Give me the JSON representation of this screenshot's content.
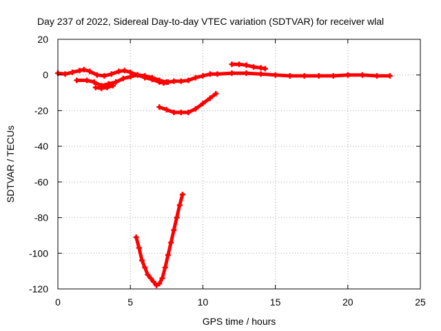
{
  "chart_data": {
    "type": "line",
    "title": "Day 237 of 2022, Sidereal Day-to-day VTEC variation (SDTVAR) for receiver wlal",
    "xlabel": "GPS time / hours",
    "ylabel": "SDTVAR / TECUs",
    "xlim": [
      0,
      25
    ],
    "ylim": [
      -120,
      20
    ],
    "xticks": [
      0,
      5,
      10,
      15,
      20,
      25
    ],
    "yticks": [
      -120,
      -100,
      -80,
      -60,
      -40,
      -20,
      0,
      20
    ],
    "grid": true,
    "legend": "none",
    "color": "#ff0000",
    "series": [
      {
        "x": [
          0.0,
          0.5,
          1.0,
          1.5,
          1.8,
          2.2,
          2.7,
          3.2,
          3.7,
          4.2,
          4.6,
          5.0,
          5.5,
          6.0,
          6.5,
          7.0,
          7.5
        ],
        "y": [
          1,
          0.5,
          1.5,
          2.5,
          3,
          2,
          0,
          -0.5,
          0.5,
          2,
          2.5,
          1.5,
          0,
          -0.5,
          -1.5,
          -3,
          -4
        ]
      },
      {
        "x": [
          1.3,
          2.0,
          2.5,
          3.0,
          3.5,
          4.0,
          4.5,
          5.0,
          5.5,
          6.0,
          6.5,
          7.0,
          7.3,
          7.6,
          8.0,
          8.5,
          9.0,
          9.5,
          10.0,
          10.5,
          11.0,
          12.0,
          13.0,
          14.0,
          15.0,
          16.0,
          17.0,
          18.0,
          19.0,
          20.0,
          21.0,
          22.0,
          22.9
        ],
        "y": [
          -3,
          -3,
          -4,
          -6,
          -5,
          -4,
          -2,
          -1,
          0,
          -1.5,
          -2.5,
          -4,
          -4.5,
          -4,
          -3.5,
          -3.5,
          -3,
          -1.5,
          -0.5,
          0.5,
          0.5,
          1,
          1,
          0.5,
          0,
          -0.5,
          -0.5,
          -0.5,
          -0.5,
          0,
          0,
          -0.5,
          -0.5
        ]
      },
      {
        "x": [
          2.6,
          3.0,
          3.4,
          3.8
        ],
        "y": [
          -7,
          -7.5,
          -7,
          -6
        ]
      },
      {
        "x": [
          12.0,
          12.5,
          13.0,
          13.5,
          14.0,
          14.3
        ],
        "y": [
          6,
          6,
          5.5,
          4.5,
          4,
          3.5
        ]
      },
      {
        "x": [
          7.0,
          7.5,
          8.0,
          8.5,
          9.0,
          9.5,
          10.0,
          10.5,
          10.9
        ],
        "y": [
          -18,
          -19.5,
          -21,
          -21,
          -21,
          -19,
          -16,
          -13,
          -10.5
        ]
      },
      {
        "x": [
          5.4,
          5.6,
          5.8,
          6.0,
          6.2,
          6.4,
          6.6,
          6.8,
          7.0,
          7.2,
          7.4,
          7.6,
          7.8,
          8.0,
          8.2,
          8.4,
          8.6
        ],
        "y": [
          -91,
          -97,
          -104,
          -108,
          -112,
          -114,
          -116,
          -118,
          -117,
          -114,
          -108,
          -101,
          -94,
          -87,
          -80,
          -73,
          -67
        ]
      }
    ]
  }
}
